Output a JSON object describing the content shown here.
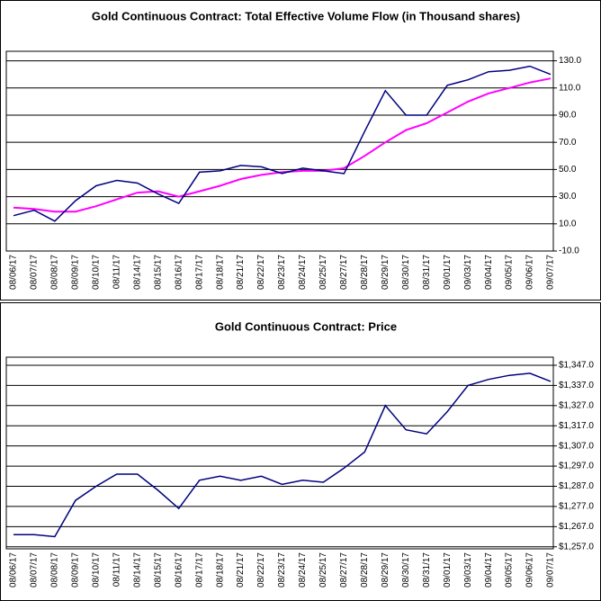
{
  "chart_data": [
    {
      "type": "line",
      "title": "Gold Continuous Contract: Total Effective Volume Flow (in Thousand shares)",
      "categories": [
        "08/06/17",
        "08/07/17",
        "08/08/17",
        "08/09/17",
        "08/10/17",
        "08/11/17",
        "08/14/17",
        "08/15/17",
        "08/16/17",
        "08/17/17",
        "08/18/17",
        "08/21/17",
        "08/22/17",
        "08/23/17",
        "08/24/17",
        "08/25/17",
        "08/27/17",
        "08/28/17",
        "08/29/17",
        "08/30/17",
        "08/31/17",
        "09/01/17",
        "09/03/17",
        "09/04/17",
        "09/05/17",
        "09/06/17",
        "09/07/17"
      ],
      "series": [
        {
          "color": "#000080",
          "values": [
            16,
            20,
            12,
            27,
            38,
            42,
            40,
            32,
            25,
            48,
            49,
            53,
            52,
            47,
            51,
            49,
            47,
            78,
            108,
            90,
            90,
            112,
            116,
            122,
            123,
            126,
            120
          ]
        },
        {
          "color": "#ff00ff",
          "values": [
            22,
            21,
            19,
            19,
            23,
            28,
            33,
            34,
            30,
            34,
            38,
            43,
            46,
            48,
            49,
            49,
            51,
            60,
            70,
            79,
            84,
            92,
            100,
            106,
            110,
            114,
            117
          ]
        }
      ],
      "ylim": [
        -10,
        137
      ],
      "yticks": [
        {
          "value": -10,
          "label": "-10.0"
        },
        {
          "value": 10,
          "label": "10.0"
        },
        {
          "value": 30,
          "label": "30.0"
        },
        {
          "value": 50,
          "label": "50.0"
        },
        {
          "value": 70,
          "label": "70.0"
        },
        {
          "value": 90,
          "label": "90.0"
        },
        {
          "value": 110,
          "label": "110.0"
        },
        {
          "value": 130,
          "label": "130.0"
        }
      ],
      "grid": true
    },
    {
      "type": "line",
      "title": "Gold Continuous Contract: Price",
      "categories": [
        "08/06/17",
        "08/07/17",
        "08/08/17",
        "08/09/17",
        "08/10/17",
        "08/11/17",
        "08/14/17",
        "08/15/17",
        "08/16/17",
        "08/17/17",
        "08/18/17",
        "08/21/17",
        "08/22/17",
        "08/23/17",
        "08/24/17",
        "08/25/17",
        "08/27/17",
        "08/28/17",
        "08/29/17",
        "08/30/17",
        "08/31/17",
        "09/01/17",
        "09/03/17",
        "09/04/17",
        "09/05/17",
        "09/06/17",
        "09/07/17"
      ],
      "series": [
        {
          "color": "#000080",
          "values": [
            1263,
            1263,
            1262,
            1280,
            1287,
            1293,
            1293,
            1285,
            1276,
            1290,
            1292,
            1290,
            1292,
            1288,
            1290,
            1289,
            1296,
            1304,
            1327,
            1315,
            1313,
            1324,
            1337,
            1340,
            1342,
            1343,
            1339
          ]
        }
      ],
      "ylim": [
        1256,
        1351
      ],
      "yticks": [
        {
          "value": 1257,
          "label": "$1,257.0"
        },
        {
          "value": 1267,
          "label": "$1,267.0"
        },
        {
          "value": 1277,
          "label": "$1,277.0"
        },
        {
          "value": 1287,
          "label": "$1,287.0"
        },
        {
          "value": 1297,
          "label": "$1,297.0"
        },
        {
          "value": 1307,
          "label": "$1,307.0"
        },
        {
          "value": 1317,
          "label": "$1,317.0"
        },
        {
          "value": 1327,
          "label": "$1,327.0"
        },
        {
          "value": 1337,
          "label": "$1,337.0"
        },
        {
          "value": 1347,
          "label": "$1,347.0"
        }
      ],
      "grid": true
    }
  ]
}
